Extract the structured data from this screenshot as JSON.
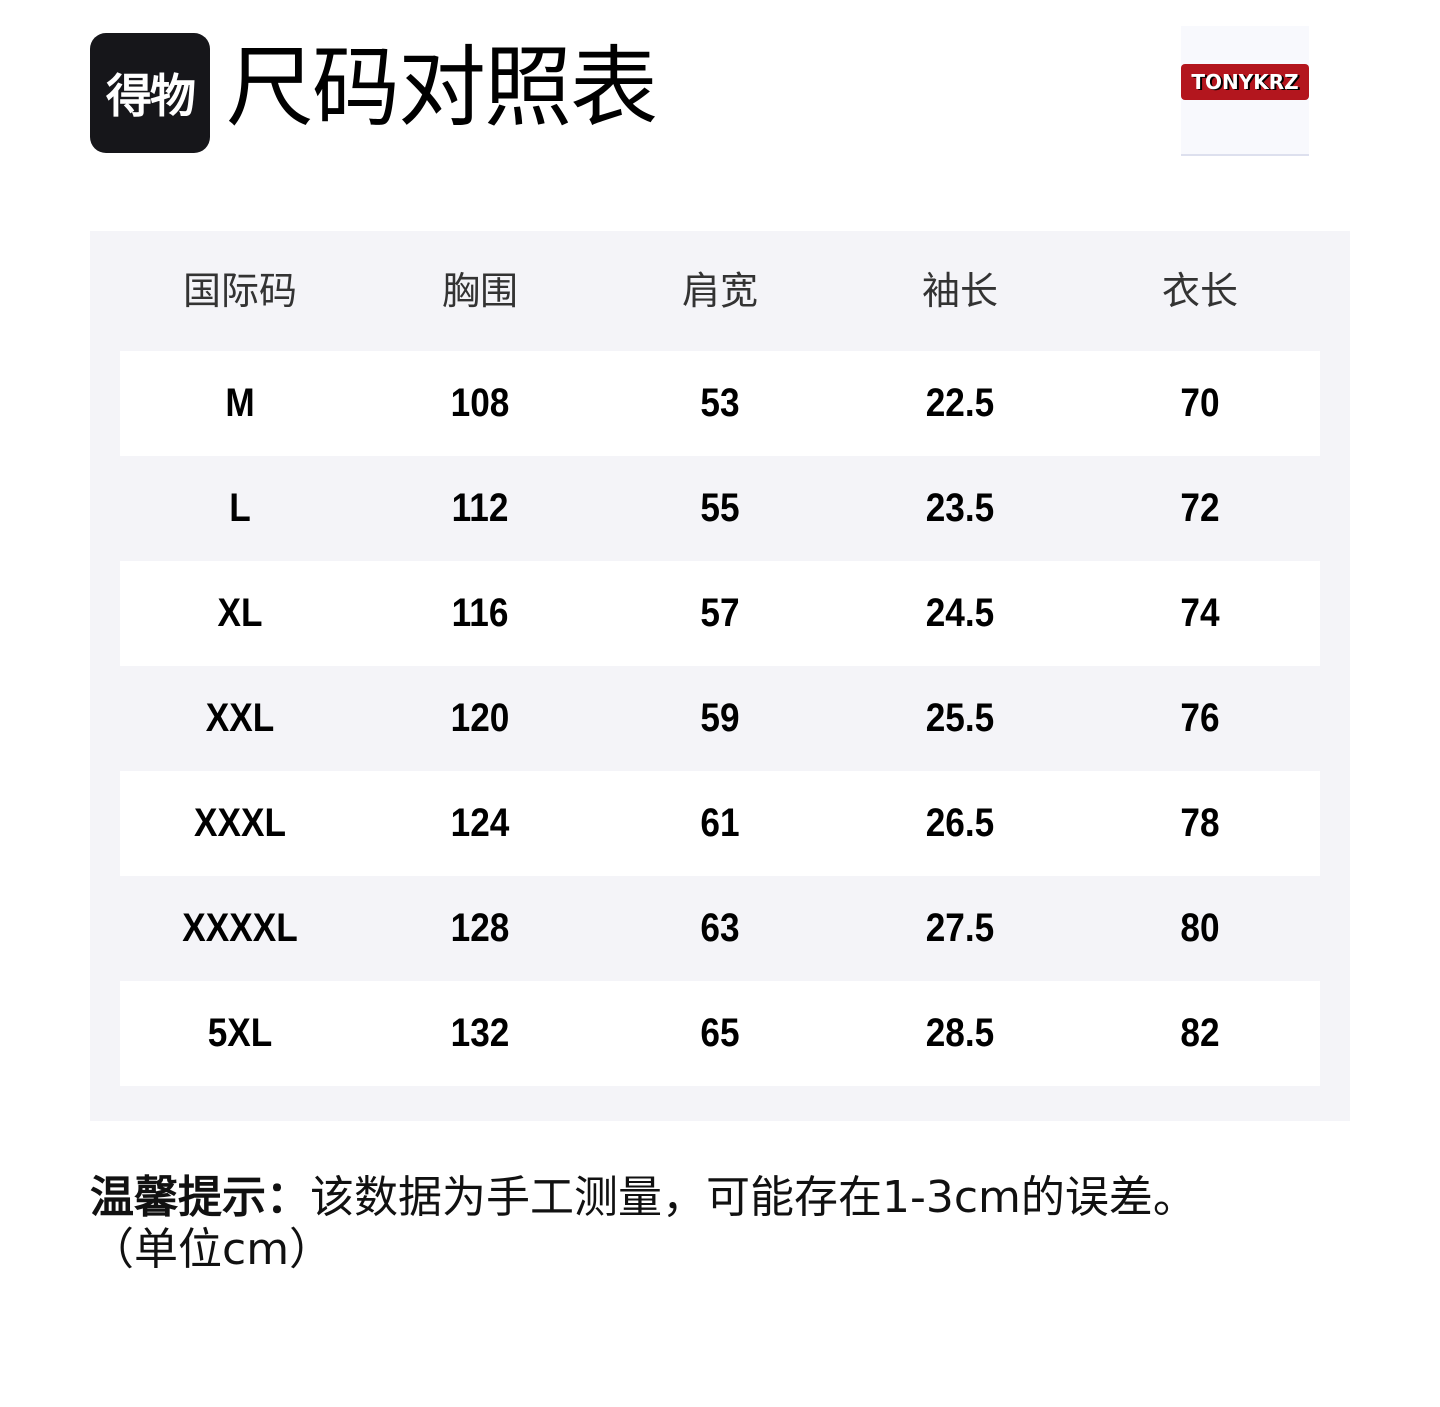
{
  "header": {
    "logo_text": "得物",
    "title": "尺码对照表",
    "brand": "TONYKRZ"
  },
  "table": {
    "columns": [
      "国际码",
      "胸围",
      "肩宽",
      "袖长",
      "衣长"
    ],
    "rows": [
      [
        "M",
        "108",
        "53",
        "22.5",
        "70"
      ],
      [
        "L",
        "112",
        "55",
        "23.5",
        "72"
      ],
      [
        "XL",
        "116",
        "57",
        "24.5",
        "74"
      ],
      [
        "XXL",
        "120",
        "59",
        "25.5",
        "76"
      ],
      [
        "XXXL",
        "124",
        "61",
        "26.5",
        "78"
      ],
      [
        "XXXXL",
        "128",
        "63",
        "27.5",
        "80"
      ],
      [
        "5XL",
        "132",
        "65",
        "28.5",
        "82"
      ]
    ]
  },
  "note": {
    "label": "温馨提示：",
    "text": "该数据为手工测量，可能存在1-3cm的误差。",
    "unit": "（单位cm）"
  }
}
